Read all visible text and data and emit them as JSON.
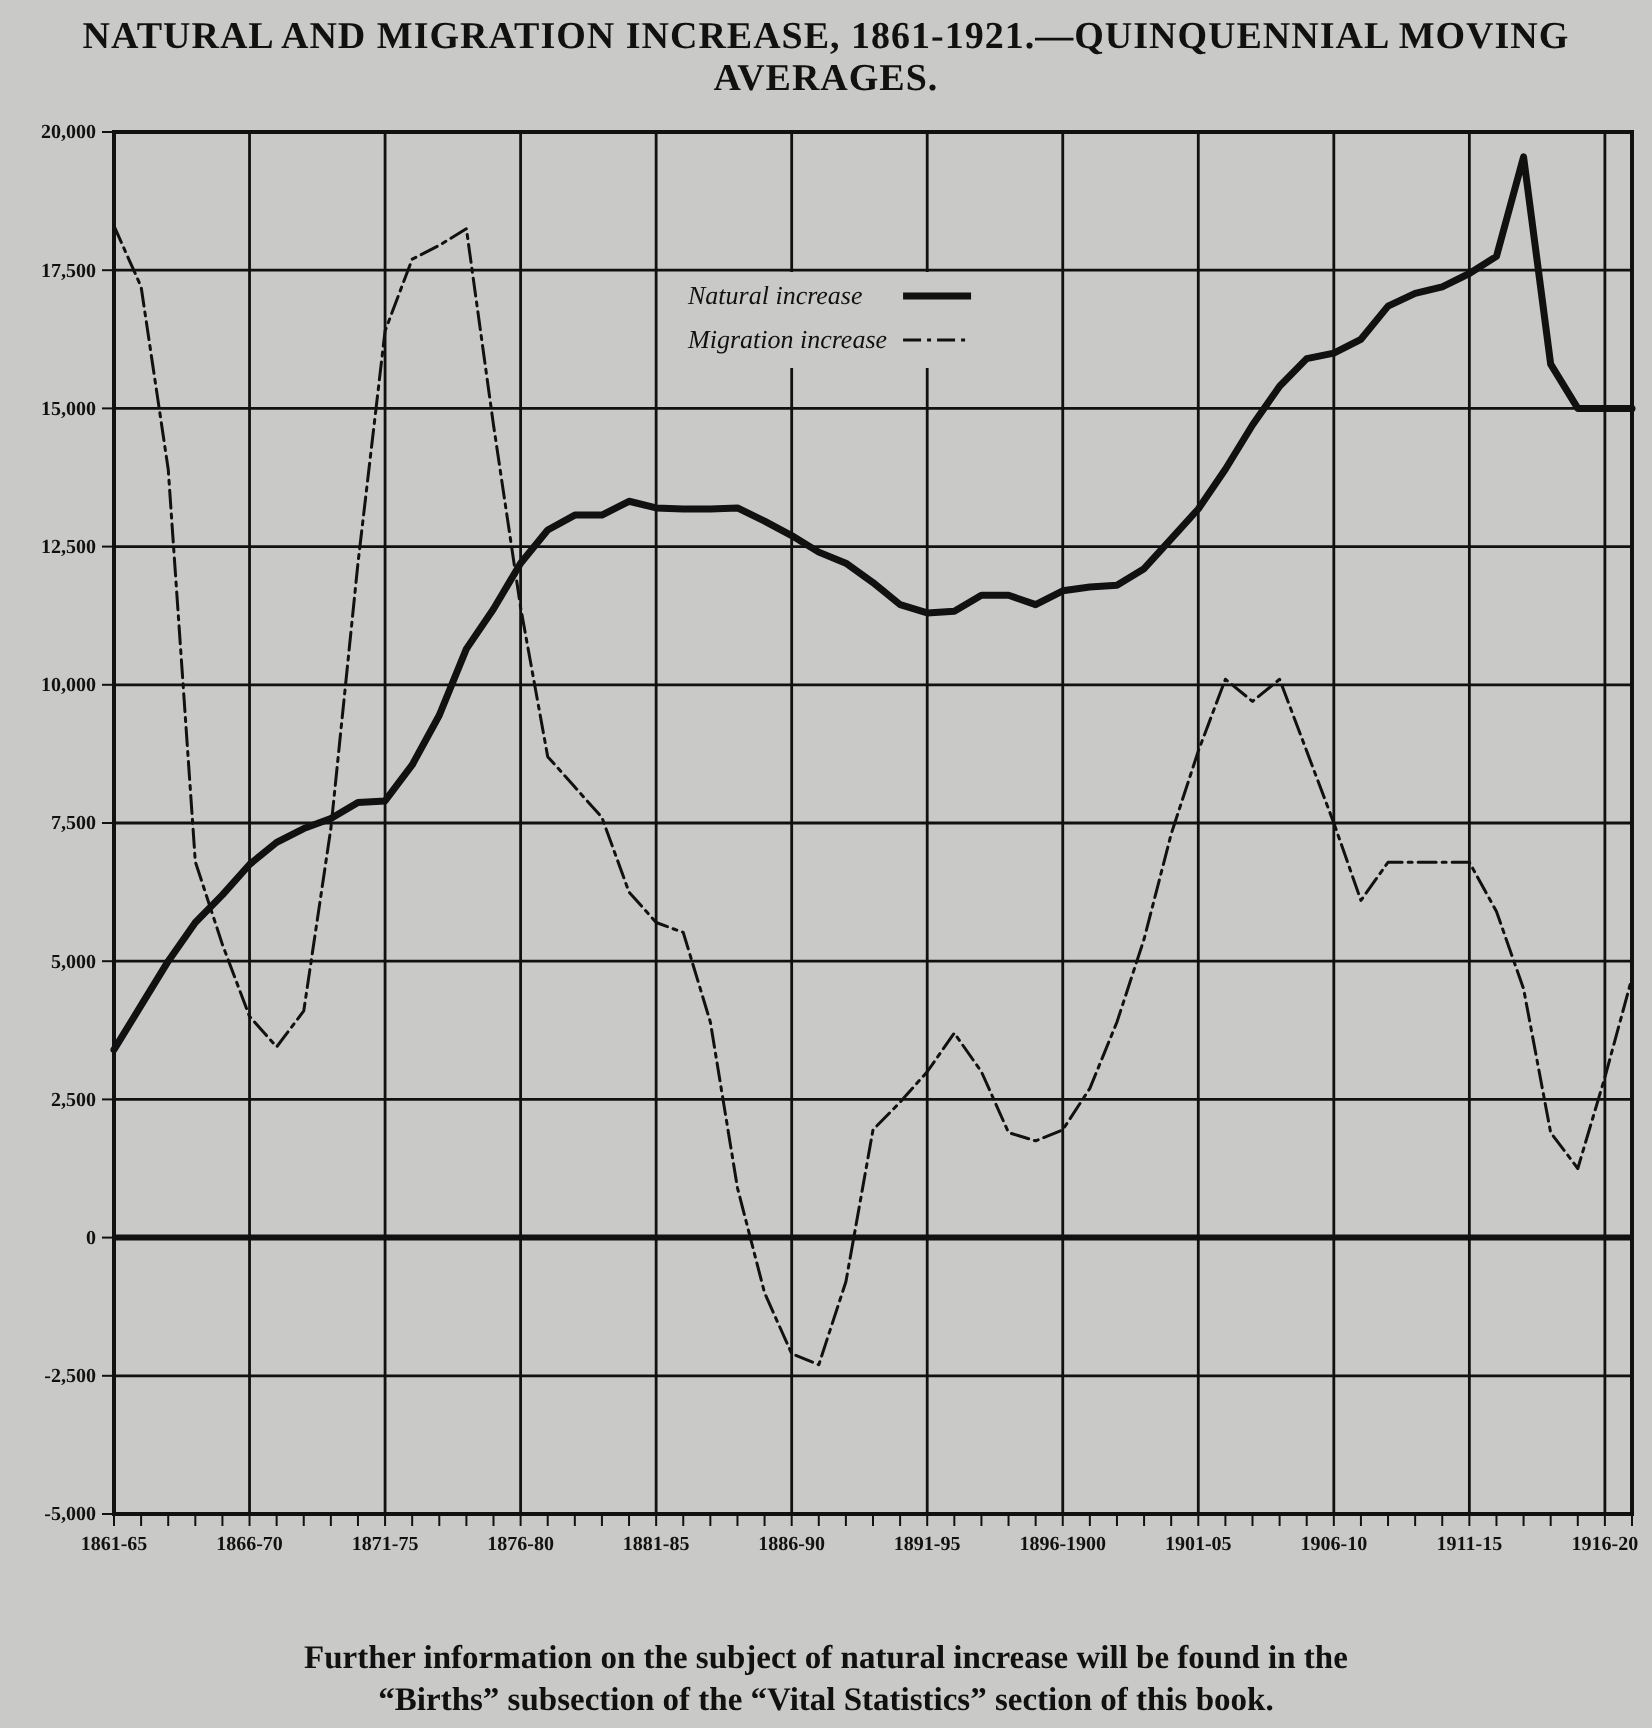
{
  "chart_data": {
    "type": "line",
    "title": "NATURAL AND MIGRATION INCREASE, 1861-1921.—QUINQUENNIAL MOVING AVERAGES.",
    "annotations": [
      "Further information on the subject of natural increase will be found in the “Births” subsection of the “Vital Statistics” section of this book."
    ],
    "categories": [
      "1861-65",
      null,
      null,
      null,
      null,
      "1866-70",
      null,
      null,
      null,
      null,
      "1871-75",
      null,
      null,
      null,
      null,
      "1876-80",
      null,
      null,
      null,
      null,
      "1881-85",
      null,
      null,
      null,
      null,
      "1886-90",
      null,
      null,
      null,
      null,
      "1891-95",
      null,
      null,
      null,
      null,
      "1896-1900",
      null,
      null,
      null,
      null,
      "1901-05",
      null,
      null,
      null,
      null,
      "1906-10",
      null,
      null,
      null,
      null,
      "1911-15",
      null,
      null,
      null,
      null,
      "1916-20",
      null
    ],
    "series": [
      {
        "name": "Natural increase",
        "color": "#111111",
        "line_style": "solid",
        "values": [
          3400,
          4200,
          5000,
          5700,
          6200,
          6750,
          7150,
          7400,
          7580,
          7870,
          7900,
          8550,
          9450,
          10650,
          11370,
          12200,
          12800,
          13070,
          13070,
          13320,
          13200,
          13180,
          13180,
          13200,
          12960,
          12700,
          12400,
          12200,
          11850,
          11450,
          11300,
          11330,
          11620,
          11620,
          11450,
          11700,
          11770,
          11800,
          12100,
          12640,
          13180,
          13900,
          14700,
          15400,
          15900,
          16000,
          16250,
          16850,
          17080,
          17200,
          17440,
          17750,
          19550,
          15800,
          15000,
          15000,
          15000
        ]
      },
      {
        "name": "Migration increase",
        "color": "#111111",
        "line_style": "dashed",
        "values": [
          18300,
          17200,
          13900,
          6800,
          5300,
          4000,
          3450,
          4100,
          7400,
          12200,
          16400,
          17700,
          17950,
          18250,
          14700,
          11400,
          8700,
          8150,
          7600,
          6250,
          5700,
          5520,
          3900,
          900,
          -1000,
          -2100,
          -2300,
          -800,
          1950,
          2450,
          3000,
          3700,
          3000,
          1900,
          1750,
          1950,
          2700,
          3900,
          5400,
          7300,
          8800,
          10100,
          9700,
          10100,
          8800,
          7500,
          6100,
          6790,
          6790,
          6790,
          6790,
          5900,
          4500,
          1900,
          1250,
          2900,
          4700
        ]
      }
    ],
    "ylim": [
      -5000,
      20000
    ],
    "yticks": [
      {
        "value": -5000,
        "label": "-5,000"
      },
      {
        "value": -2500,
        "label": "-2,500"
      },
      0,
      {
        "value": 2500,
        "label": "2,500"
      },
      {
        "value": 5000,
        "label": "5,000"
      },
      {
        "value": 7500,
        "label": "7,500"
      },
      {
        "value": 10000,
        "label": "10,000"
      },
      {
        "value": 12500,
        "label": "12,500"
      },
      {
        "value": 15000,
        "label": "15,000"
      },
      {
        "value": 17500,
        "label": "17,500"
      },
      {
        "value": 20000,
        "label": "20,000"
      }
    ],
    "ref_lines": [
      {
        "axis": "y",
        "value": 0,
        "color": "#111111"
      }
    ],
    "grid": true,
    "legend": "top",
    "marker": "none"
  }
}
